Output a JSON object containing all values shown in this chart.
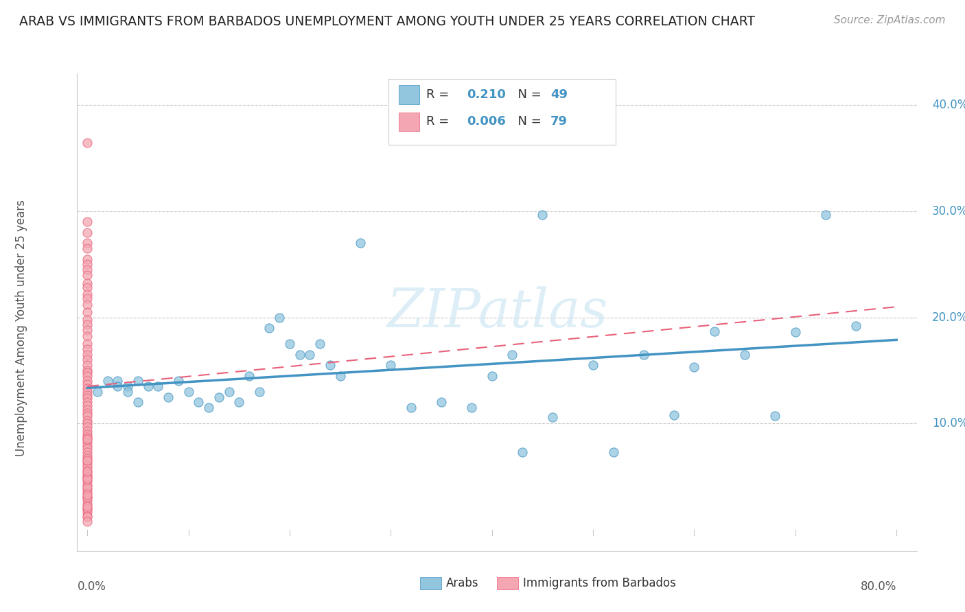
{
  "title": "ARAB VS IMMIGRANTS FROM BARBADOS UNEMPLOYMENT AMONG YOUTH UNDER 25 YEARS CORRELATION CHART",
  "source": "Source: ZipAtlas.com",
  "ylabel": "Unemployment Among Youth under 25 years",
  "arab_color": "#92c5de",
  "arab_color_edge": "#4393c3",
  "barbados_color": "#f4a7b2",
  "barbados_color_edge": "#e8617a",
  "R_arab": "0.210",
  "N_arab": "49",
  "R_barbados": "0.006",
  "N_barbados": "79",
  "watermark": "ZIPatlas",
  "xlim": [
    0.0,
    0.8
  ],
  "ylim": [
    0.0,
    0.42
  ],
  "arab_x": [
    0.01,
    0.02,
    0.03,
    0.03,
    0.04,
    0.04,
    0.05,
    0.05,
    0.06,
    0.07,
    0.08,
    0.09,
    0.1,
    0.11,
    0.12,
    0.13,
    0.14,
    0.15,
    0.16,
    0.17,
    0.18,
    0.19,
    0.2,
    0.21,
    0.22,
    0.23,
    0.24,
    0.25,
    0.27,
    0.3,
    0.32,
    0.35,
    0.38,
    0.4,
    0.42,
    0.43,
    0.45,
    0.46,
    0.5,
    0.52,
    0.55,
    0.58,
    0.6,
    0.62,
    0.65,
    0.68,
    0.7,
    0.73,
    0.76
  ],
  "arab_y": [
    0.13,
    0.14,
    0.14,
    0.135,
    0.135,
    0.13,
    0.14,
    0.12,
    0.135,
    0.135,
    0.125,
    0.14,
    0.13,
    0.12,
    0.115,
    0.125,
    0.13,
    0.12,
    0.145,
    0.13,
    0.19,
    0.2,
    0.175,
    0.165,
    0.165,
    0.175,
    0.155,
    0.145,
    0.27,
    0.155,
    0.115,
    0.12,
    0.115,
    0.145,
    0.165,
    0.073,
    0.297,
    0.106,
    0.155,
    0.073,
    0.165,
    0.108,
    0.153,
    0.187,
    0.165,
    0.107,
    0.186,
    0.297,
    0.192
  ],
  "barbados_x": [
    0.0,
    0.0,
    0.0,
    0.0,
    0.0,
    0.0,
    0.0,
    0.0,
    0.0,
    0.0,
    0.0,
    0.0,
    0.0,
    0.0,
    0.0,
    0.0,
    0.0,
    0.0,
    0.0,
    0.0,
    0.0,
    0.0,
    0.0,
    0.0,
    0.0,
    0.0,
    0.0,
    0.0,
    0.0,
    0.0,
    0.0,
    0.0,
    0.0,
    0.0,
    0.0,
    0.0,
    0.0,
    0.0,
    0.0,
    0.0,
    0.0,
    0.0,
    0.0,
    0.0,
    0.0,
    0.0,
    0.0,
    0.0,
    0.0,
    0.0,
    0.0,
    0.0,
    0.0,
    0.0,
    0.0,
    0.0,
    0.0,
    0.0,
    0.0,
    0.0,
    0.0,
    0.0,
    0.0,
    0.0,
    0.0,
    0.0,
    0.0,
    0.0,
    0.0,
    0.0,
    0.0,
    0.0,
    0.0,
    0.0,
    0.0,
    0.0,
    0.0,
    0.0,
    0.0
  ],
  "barbados_y": [
    0.365,
    0.29,
    0.28,
    0.27,
    0.265,
    0.255,
    0.25,
    0.245,
    0.24,
    0.232,
    0.228,
    0.222,
    0.218,
    0.212,
    0.205,
    0.198,
    0.193,
    0.188,
    0.182,
    0.175,
    0.17,
    0.165,
    0.16,
    0.155,
    0.15,
    0.148,
    0.145,
    0.14,
    0.137,
    0.133,
    0.13,
    0.127,
    0.124,
    0.12,
    0.117,
    0.113,
    0.11,
    0.107,
    0.103,
    0.1,
    0.097,
    0.093,
    0.09,
    0.087,
    0.085,
    0.082,
    0.079,
    0.076,
    0.073,
    0.07,
    0.067,
    0.064,
    0.061,
    0.058,
    0.055,
    0.052,
    0.049,
    0.046,
    0.042,
    0.038,
    0.035,
    0.031,
    0.028,
    0.024,
    0.02,
    0.017,
    0.013,
    0.085,
    0.05,
    0.04,
    0.03,
    0.02,
    0.012,
    0.065,
    0.048,
    0.033,
    0.055,
    0.022,
    0.008
  ]
}
